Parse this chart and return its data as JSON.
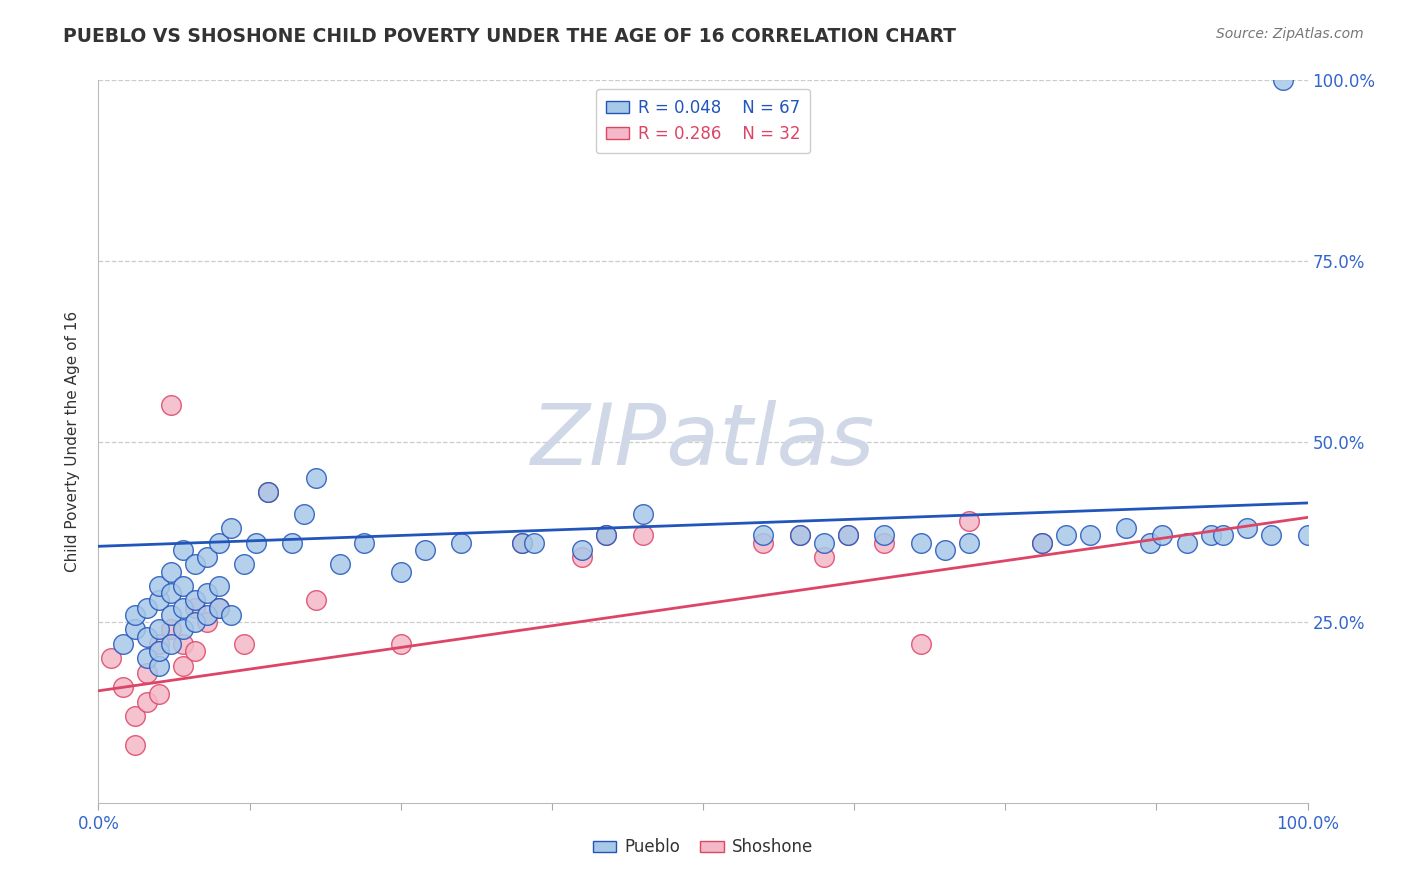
{
  "title": "PUEBLO VS SHOSHONE CHILD POVERTY UNDER THE AGE OF 16 CORRELATION CHART",
  "source": "Source: ZipAtlas.com",
  "ylabel": "Child Poverty Under the Age of 16",
  "watermark": "ZIPatlas",
  "xlim": [
    0,
    1
  ],
  "ylim": [
    0,
    1
  ],
  "pueblo_color": "#a8c8e8",
  "shoshone_color": "#f4b8c8",
  "pueblo_line_color": "#2255bb",
  "shoshone_line_color": "#dd4466",
  "legend_pueblo_r": "R = 0.048",
  "legend_pueblo_n": "N = 67",
  "legend_shoshone_r": "R = 0.286",
  "legend_shoshone_n": "N = 32",
  "pueblo_trend_start": 0.355,
  "pueblo_trend_end": 0.415,
  "shoshone_trend_start": 0.155,
  "shoshone_trend_end": 0.395,
  "background_color": "#ffffff",
  "grid_color": "#cccccc",
  "title_color": "#333333",
  "source_color": "#777777",
  "watermark_color": "#d0d8e8",
  "tick_color": "#3366cc",
  "pueblo_x": [
    0.02,
    0.03,
    0.03,
    0.04,
    0.04,
    0.04,
    0.05,
    0.05,
    0.05,
    0.05,
    0.05,
    0.06,
    0.06,
    0.06,
    0.06,
    0.07,
    0.07,
    0.07,
    0.07,
    0.08,
    0.08,
    0.08,
    0.09,
    0.09,
    0.09,
    0.1,
    0.1,
    0.1,
    0.11,
    0.11,
    0.12,
    0.13,
    0.14,
    0.16,
    0.17,
    0.18,
    0.2,
    0.22,
    0.25,
    0.27,
    0.3,
    0.35,
    0.36,
    0.4,
    0.42,
    0.45,
    0.55,
    0.58,
    0.6,
    0.62,
    0.65,
    0.68,
    0.7,
    0.72,
    0.78,
    0.8,
    0.82,
    0.85,
    0.87,
    0.88,
    0.9,
    0.92,
    0.93,
    0.95,
    0.97,
    0.98,
    1.0
  ],
  "pueblo_y": [
    0.22,
    0.24,
    0.26,
    0.2,
    0.23,
    0.27,
    0.19,
    0.21,
    0.24,
    0.28,
    0.3,
    0.22,
    0.26,
    0.29,
    0.32,
    0.24,
    0.27,
    0.3,
    0.35,
    0.25,
    0.28,
    0.33,
    0.26,
    0.29,
    0.34,
    0.27,
    0.3,
    0.36,
    0.26,
    0.38,
    0.33,
    0.36,
    0.43,
    0.36,
    0.4,
    0.45,
    0.33,
    0.36,
    0.32,
    0.35,
    0.36,
    0.36,
    0.36,
    0.35,
    0.37,
    0.4,
    0.37,
    0.37,
    0.36,
    0.37,
    0.37,
    0.36,
    0.35,
    0.36,
    0.36,
    0.37,
    0.37,
    0.38,
    0.36,
    0.37,
    0.36,
    0.37,
    0.37,
    0.38,
    0.37,
    1.0,
    0.37
  ],
  "shoshone_x": [
    0.01,
    0.02,
    0.03,
    0.03,
    0.04,
    0.04,
    0.05,
    0.05,
    0.06,
    0.06,
    0.07,
    0.07,
    0.08,
    0.08,
    0.09,
    0.1,
    0.12,
    0.14,
    0.18,
    0.25,
    0.35,
    0.4,
    0.42,
    0.45,
    0.55,
    0.58,
    0.6,
    0.62,
    0.65,
    0.68,
    0.72,
    0.78
  ],
  "shoshone_y": [
    0.2,
    0.16,
    0.12,
    0.08,
    0.18,
    0.14,
    0.22,
    0.15,
    0.55,
    0.24,
    0.19,
    0.22,
    0.27,
    0.21,
    0.25,
    0.27,
    0.22,
    0.43,
    0.28,
    0.22,
    0.36,
    0.34,
    0.37,
    0.37,
    0.36,
    0.37,
    0.34,
    0.37,
    0.36,
    0.22,
    0.39,
    0.36
  ]
}
